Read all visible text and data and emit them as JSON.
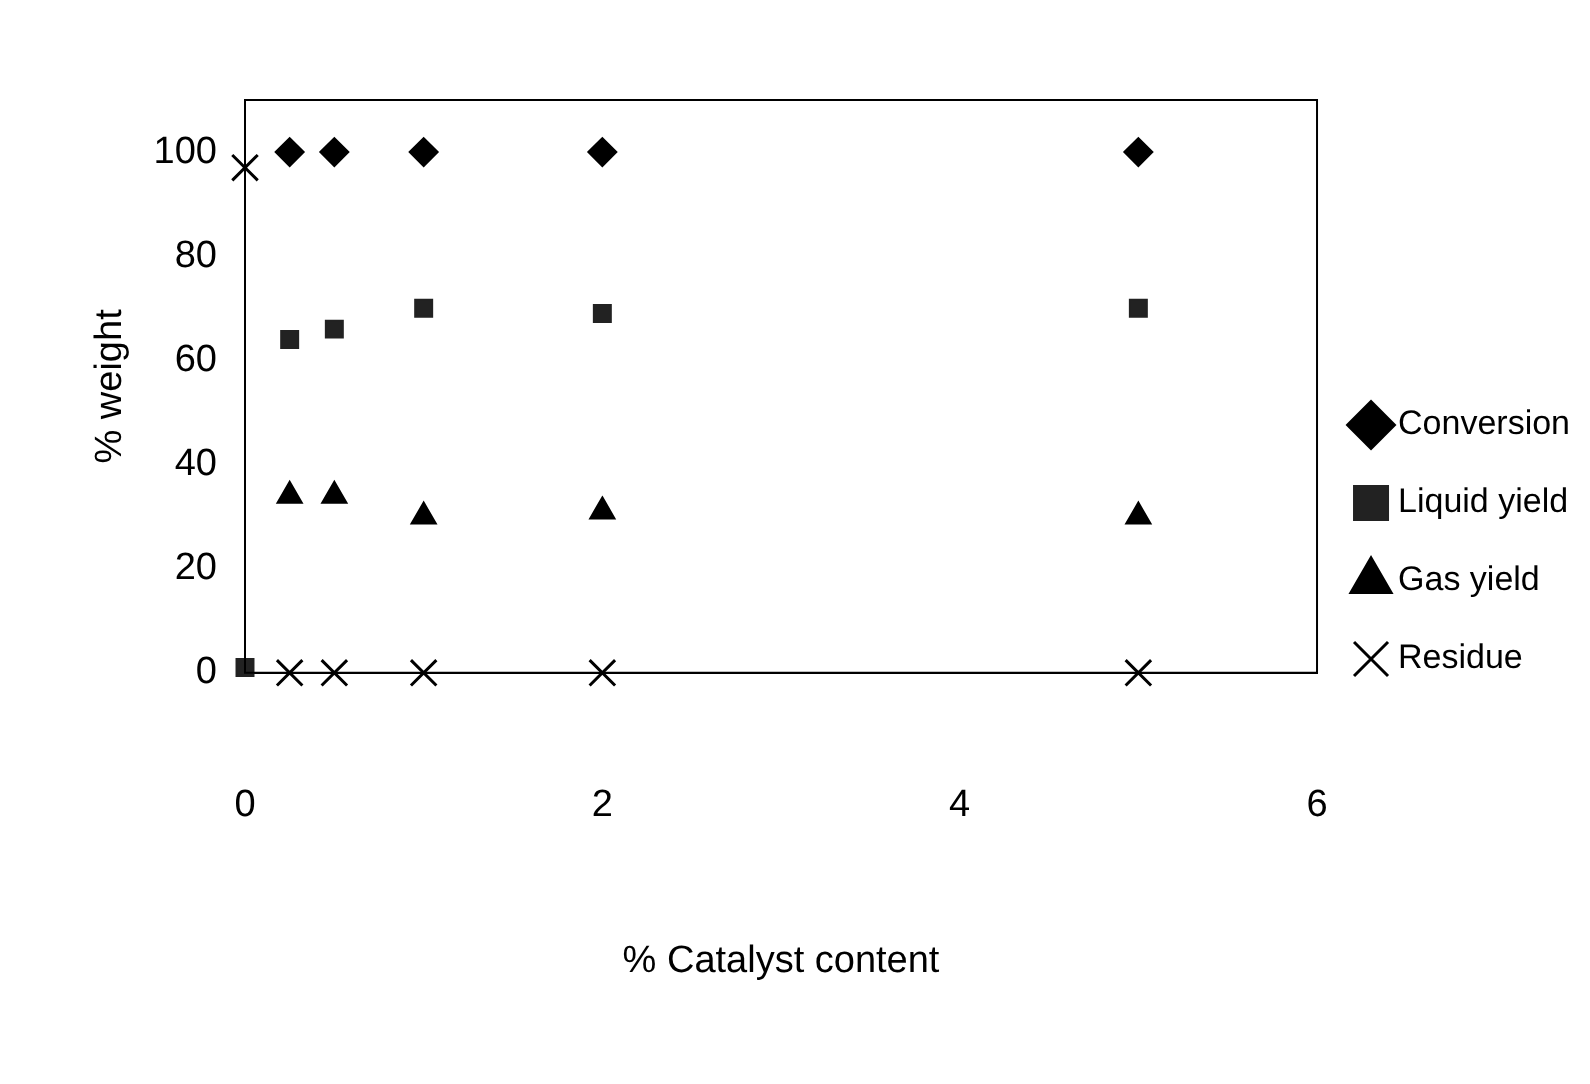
{
  "chart_data": {
    "type": "scatter",
    "xlabel": "% Catalyst content",
    "ylabel": "% weight",
    "xlim": [
      0,
      6
    ],
    "xticks": [
      0,
      2,
      4,
      6
    ],
    "ylim": [
      0,
      110
    ],
    "yticks": [
      0,
      20,
      40,
      60,
      80,
      100
    ],
    "grid": false,
    "legend": "right",
    "series": [
      {
        "name": "Conversion",
        "color": "#000000",
        "marker": "diamond",
        "x": [
          0.25,
          0.5,
          1,
          2,
          5
        ],
        "values": [
          100,
          100,
          100,
          100,
          100
        ]
      },
      {
        "name": "Liquid yield",
        "color": "#222222",
        "marker": "square",
        "x": [
          0,
          0.25,
          0.5,
          1,
          2,
          5
        ],
        "values": [
          1,
          64,
          66,
          70,
          69,
          70
        ]
      },
      {
        "name": "Gas yield",
        "color": "#000000",
        "marker": "triangle",
        "x": [
          0.25,
          0.5,
          1,
          2,
          5
        ],
        "values": [
          34,
          34,
          30,
          31,
          30
        ]
      },
      {
        "name": "Residue",
        "color": "#000000",
        "marker": "cross",
        "x": [
          0,
          0.25,
          0.5,
          1,
          2,
          5
        ],
        "values": [
          97,
          0,
          0,
          0,
          0,
          0
        ]
      }
    ]
  }
}
